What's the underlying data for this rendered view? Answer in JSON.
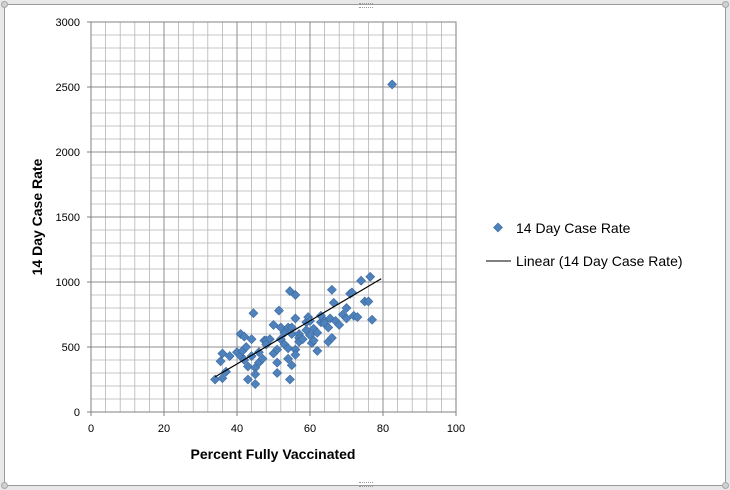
{
  "chart_data": {
    "type": "scatter",
    "xlabel": "Percent Fully Vaccinated",
    "ylabel": "14 Day Case Rate",
    "xlim": [
      0,
      100
    ],
    "ylim": [
      0,
      3000
    ],
    "x_ticks": [
      0,
      20,
      40,
      60,
      80,
      100
    ],
    "y_ticks": [
      0,
      500,
      1000,
      1500,
      2000,
      2500,
      3000
    ],
    "x_tick_labels": [
      "0",
      "20",
      "40",
      "60",
      "80",
      "100"
    ],
    "y_tick_labels": [
      "0",
      "500",
      "1000",
      "1500",
      "2000",
      "2500",
      "3000"
    ],
    "grid": "on",
    "legend_position": "right",
    "series": [
      {
        "name": "14 Day Case Rate",
        "marker": "diamond",
        "color": "#4f81bd",
        "points": [
          [
            34,
            250
          ],
          [
            35.5,
            390
          ],
          [
            36,
            450
          ],
          [
            36,
            260
          ],
          [
            37,
            310
          ],
          [
            38,
            430
          ],
          [
            40,
            460
          ],
          [
            41,
            600
          ],
          [
            41,
            430
          ],
          [
            41.5,
            470
          ],
          [
            42,
            580
          ],
          [
            42,
            400
          ],
          [
            42.5,
            500
          ],
          [
            43,
            350
          ],
          [
            43,
            250
          ],
          [
            44,
            560
          ],
          [
            44,
            430
          ],
          [
            44.5,
            760
          ],
          [
            45,
            340
          ],
          [
            45,
            290
          ],
          [
            45,
            215
          ],
          [
            46,
            460
          ],
          [
            46,
            380
          ],
          [
            47,
            410
          ],
          [
            47.5,
            550
          ],
          [
            48,
            550
          ],
          [
            48,
            520
          ],
          [
            49,
            560
          ],
          [
            50,
            670
          ],
          [
            50,
            450
          ],
          [
            51,
            480
          ],
          [
            51,
            380
          ],
          [
            51,
            300
          ],
          [
            51.5,
            780
          ],
          [
            52,
            650
          ],
          [
            52,
            560
          ],
          [
            53,
            610
          ],
          [
            53,
            520
          ],
          [
            54,
            650
          ],
          [
            54,
            490
          ],
          [
            54,
            410
          ],
          [
            54.5,
            250
          ],
          [
            54.5,
            930
          ],
          [
            55,
            650
          ],
          [
            55,
            600
          ],
          [
            55,
            360
          ],
          [
            56,
            900
          ],
          [
            56,
            720
          ],
          [
            56,
            480
          ],
          [
            56,
            440
          ],
          [
            57,
            600
          ],
          [
            57,
            570
          ],
          [
            57,
            540
          ],
          [
            58,
            560
          ],
          [
            59,
            690
          ],
          [
            59,
            630
          ],
          [
            59.5,
            730
          ],
          [
            60,
            700
          ],
          [
            60,
            590
          ],
          [
            60.5,
            530
          ],
          [
            61,
            640
          ],
          [
            61,
            550
          ],
          [
            62,
            470
          ],
          [
            62,
            610
          ],
          [
            63,
            690
          ],
          [
            63,
            740
          ],
          [
            64,
            700
          ],
          [
            64,
            680
          ],
          [
            65,
            650
          ],
          [
            65,
            540
          ],
          [
            65.5,
            720
          ],
          [
            66,
            940
          ],
          [
            66,
            570
          ],
          [
            66.5,
            840
          ],
          [
            67,
            700
          ],
          [
            68,
            670
          ],
          [
            69,
            750
          ],
          [
            70,
            720
          ],
          [
            70,
            800
          ],
          [
            71,
            910
          ],
          [
            71.5,
            920
          ],
          [
            72,
            740
          ],
          [
            73,
            730
          ],
          [
            74,
            1010
          ],
          [
            75,
            850
          ],
          [
            76,
            850
          ],
          [
            76.5,
            1040
          ],
          [
            77,
            710
          ],
          [
            82.5,
            2520
          ]
        ]
      },
      {
        "name": "Linear (14 Day Case Rate)",
        "type": "line",
        "color": "#000000",
        "x": [
          34,
          79.5
        ],
        "y": [
          270,
          1025
        ]
      }
    ]
  }
}
